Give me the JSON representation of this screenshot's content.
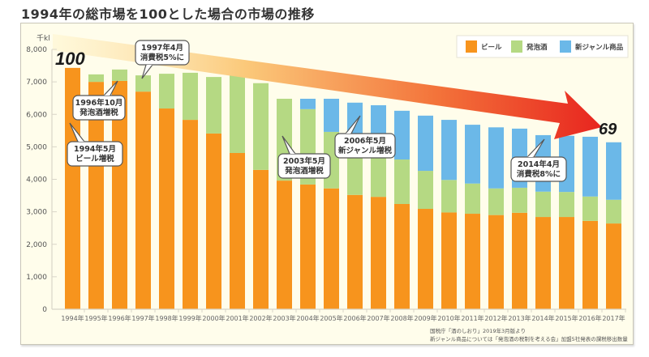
{
  "title": "1994年の総市場を100とした場合の市場の推移",
  "colors": {
    "beer": "#f7941d",
    "happoshu": "#b5d983",
    "new_genre": "#6bb8e8",
    "background": "#fffdeb"
  },
  "chart_data": {
    "type": "bar",
    "stacked": true,
    "title": "1994年の総市場を100とした場合の市場の推移",
    "ylabel": "千kl",
    "xlabel": "",
    "ylim": [
      0,
      8000
    ],
    "yticks": [
      0,
      1000,
      2000,
      3000,
      4000,
      5000,
      6000,
      7000,
      8000
    ],
    "ytick_labels": [
      "0",
      "1,000",
      "2,000",
      "3,000",
      "4,000",
      "5,000",
      "6,000",
      "7,000",
      "8,000"
    ],
    "categories": [
      "1994年",
      "1995年",
      "1996年",
      "1997年",
      "1998年",
      "1999年",
      "2000年",
      "2001年",
      "2002年",
      "2003年",
      "2004年",
      "2005年",
      "2006年",
      "2007年",
      "2008年",
      "2009年",
      "2010年",
      "2011年",
      "2012年",
      "2013年",
      "2014年",
      "2015年",
      "2016年",
      "2017年"
    ],
    "legend_position": "top-right",
    "series": [
      {
        "name": "ビール",
        "key": "beer",
        "values": [
          7430,
          7000,
          7030,
          6700,
          6180,
          5830,
          5410,
          4810,
          4290,
          3960,
          3840,
          3720,
          3520,
          3460,
          3240,
          3090,
          2980,
          2940,
          2900,
          2970,
          2840,
          2840,
          2720,
          2640
        ]
      },
      {
        "name": "発泡酒",
        "key": "happoshu",
        "values": [
          0,
          230,
          350,
          500,
          1070,
          1450,
          1740,
          2390,
          2670,
          2520,
          2320,
          1740,
          1430,
          1340,
          1370,
          1170,
          1000,
          930,
          820,
          770,
          780,
          770,
          750,
          730
        ]
      },
      {
        "name": "新ジャンル商品",
        "key": "new_genre",
        "values": [
          0,
          0,
          0,
          0,
          0,
          0,
          0,
          0,
          0,
          0,
          320,
          1020,
          1410,
          1480,
          1500,
          1700,
          1850,
          1810,
          1880,
          1820,
          1740,
          1730,
          1840,
          1770
        ]
      }
    ],
    "annotations": [
      {
        "text": [
          "1994年5月",
          "ビール増税"
        ],
        "category": "1994年"
      },
      {
        "text": [
          "1996年10月",
          "発泡酒増税"
        ],
        "category": "1996年"
      },
      {
        "text": [
          "1997年4月",
          "消費税5%に"
        ],
        "category": "1997年"
      },
      {
        "text": [
          "2003年5月",
          "発泡酒増税"
        ],
        "category": "2003年"
      },
      {
        "text": [
          "2006年5月",
          "新ジャンル増税"
        ],
        "category": "2006年"
      },
      {
        "text": [
          "2014年4月",
          "消費税8%に"
        ],
        "category": "2014年"
      }
    ],
    "index_start_label": "100",
    "index_end_label": "69",
    "footnotes": [
      "国税庁「酒のしおり」2019年3月版より",
      "新ジャンル商品については「発泡酒の税制を考える会」加盟5社発表の課税移出数量"
    ]
  }
}
